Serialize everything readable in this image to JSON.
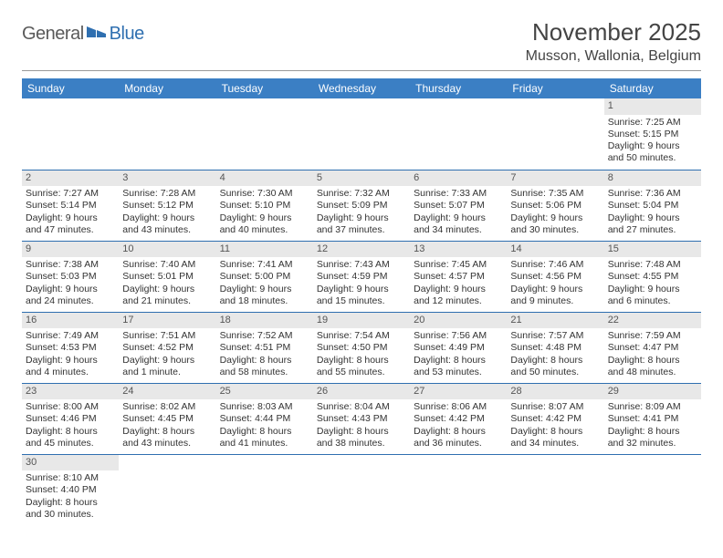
{
  "logo": {
    "part1": "General",
    "part2": "Blue"
  },
  "title": "November 2025",
  "location": "Musson, Wallonia, Belgium",
  "colors": {
    "header_bg": "#3b7fc4",
    "header_text": "#ffffff",
    "daynum_bg": "#e8e8e8",
    "row_divider": "#2f6fb0",
    "logo_gray": "#5a5a5a",
    "logo_blue": "#2f6fb0"
  },
  "weekdays": [
    "Sunday",
    "Monday",
    "Tuesday",
    "Wednesday",
    "Thursday",
    "Friday",
    "Saturday"
  ],
  "weeks": [
    [
      null,
      null,
      null,
      null,
      null,
      null,
      {
        "n": "1",
        "sr": "Sunrise: 7:25 AM",
        "ss": "Sunset: 5:15 PM",
        "dl": "Daylight: 9 hours and 50 minutes."
      }
    ],
    [
      {
        "n": "2",
        "sr": "Sunrise: 7:27 AM",
        "ss": "Sunset: 5:14 PM",
        "dl": "Daylight: 9 hours and 47 minutes."
      },
      {
        "n": "3",
        "sr": "Sunrise: 7:28 AM",
        "ss": "Sunset: 5:12 PM",
        "dl": "Daylight: 9 hours and 43 minutes."
      },
      {
        "n": "4",
        "sr": "Sunrise: 7:30 AM",
        "ss": "Sunset: 5:10 PM",
        "dl": "Daylight: 9 hours and 40 minutes."
      },
      {
        "n": "5",
        "sr": "Sunrise: 7:32 AM",
        "ss": "Sunset: 5:09 PM",
        "dl": "Daylight: 9 hours and 37 minutes."
      },
      {
        "n": "6",
        "sr": "Sunrise: 7:33 AM",
        "ss": "Sunset: 5:07 PM",
        "dl": "Daylight: 9 hours and 34 minutes."
      },
      {
        "n": "7",
        "sr": "Sunrise: 7:35 AM",
        "ss": "Sunset: 5:06 PM",
        "dl": "Daylight: 9 hours and 30 minutes."
      },
      {
        "n": "8",
        "sr": "Sunrise: 7:36 AM",
        "ss": "Sunset: 5:04 PM",
        "dl": "Daylight: 9 hours and 27 minutes."
      }
    ],
    [
      {
        "n": "9",
        "sr": "Sunrise: 7:38 AM",
        "ss": "Sunset: 5:03 PM",
        "dl": "Daylight: 9 hours and 24 minutes."
      },
      {
        "n": "10",
        "sr": "Sunrise: 7:40 AM",
        "ss": "Sunset: 5:01 PM",
        "dl": "Daylight: 9 hours and 21 minutes."
      },
      {
        "n": "11",
        "sr": "Sunrise: 7:41 AM",
        "ss": "Sunset: 5:00 PM",
        "dl": "Daylight: 9 hours and 18 minutes."
      },
      {
        "n": "12",
        "sr": "Sunrise: 7:43 AM",
        "ss": "Sunset: 4:59 PM",
        "dl": "Daylight: 9 hours and 15 minutes."
      },
      {
        "n": "13",
        "sr": "Sunrise: 7:45 AM",
        "ss": "Sunset: 4:57 PM",
        "dl": "Daylight: 9 hours and 12 minutes."
      },
      {
        "n": "14",
        "sr": "Sunrise: 7:46 AM",
        "ss": "Sunset: 4:56 PM",
        "dl": "Daylight: 9 hours and 9 minutes."
      },
      {
        "n": "15",
        "sr": "Sunrise: 7:48 AM",
        "ss": "Sunset: 4:55 PM",
        "dl": "Daylight: 9 hours and 6 minutes."
      }
    ],
    [
      {
        "n": "16",
        "sr": "Sunrise: 7:49 AM",
        "ss": "Sunset: 4:53 PM",
        "dl": "Daylight: 9 hours and 4 minutes."
      },
      {
        "n": "17",
        "sr": "Sunrise: 7:51 AM",
        "ss": "Sunset: 4:52 PM",
        "dl": "Daylight: 9 hours and 1 minute."
      },
      {
        "n": "18",
        "sr": "Sunrise: 7:52 AM",
        "ss": "Sunset: 4:51 PM",
        "dl": "Daylight: 8 hours and 58 minutes."
      },
      {
        "n": "19",
        "sr": "Sunrise: 7:54 AM",
        "ss": "Sunset: 4:50 PM",
        "dl": "Daylight: 8 hours and 55 minutes."
      },
      {
        "n": "20",
        "sr": "Sunrise: 7:56 AM",
        "ss": "Sunset: 4:49 PM",
        "dl": "Daylight: 8 hours and 53 minutes."
      },
      {
        "n": "21",
        "sr": "Sunrise: 7:57 AM",
        "ss": "Sunset: 4:48 PM",
        "dl": "Daylight: 8 hours and 50 minutes."
      },
      {
        "n": "22",
        "sr": "Sunrise: 7:59 AM",
        "ss": "Sunset: 4:47 PM",
        "dl": "Daylight: 8 hours and 48 minutes."
      }
    ],
    [
      {
        "n": "23",
        "sr": "Sunrise: 8:00 AM",
        "ss": "Sunset: 4:46 PM",
        "dl": "Daylight: 8 hours and 45 minutes."
      },
      {
        "n": "24",
        "sr": "Sunrise: 8:02 AM",
        "ss": "Sunset: 4:45 PM",
        "dl": "Daylight: 8 hours and 43 minutes."
      },
      {
        "n": "25",
        "sr": "Sunrise: 8:03 AM",
        "ss": "Sunset: 4:44 PM",
        "dl": "Daylight: 8 hours and 41 minutes."
      },
      {
        "n": "26",
        "sr": "Sunrise: 8:04 AM",
        "ss": "Sunset: 4:43 PM",
        "dl": "Daylight: 8 hours and 38 minutes."
      },
      {
        "n": "27",
        "sr": "Sunrise: 8:06 AM",
        "ss": "Sunset: 4:42 PM",
        "dl": "Daylight: 8 hours and 36 minutes."
      },
      {
        "n": "28",
        "sr": "Sunrise: 8:07 AM",
        "ss": "Sunset: 4:42 PM",
        "dl": "Daylight: 8 hours and 34 minutes."
      },
      {
        "n": "29",
        "sr": "Sunrise: 8:09 AM",
        "ss": "Sunset: 4:41 PM",
        "dl": "Daylight: 8 hours and 32 minutes."
      }
    ],
    [
      {
        "n": "30",
        "sr": "Sunrise: 8:10 AM",
        "ss": "Sunset: 4:40 PM",
        "dl": "Daylight: 8 hours and 30 minutes."
      },
      null,
      null,
      null,
      null,
      null,
      null
    ]
  ]
}
